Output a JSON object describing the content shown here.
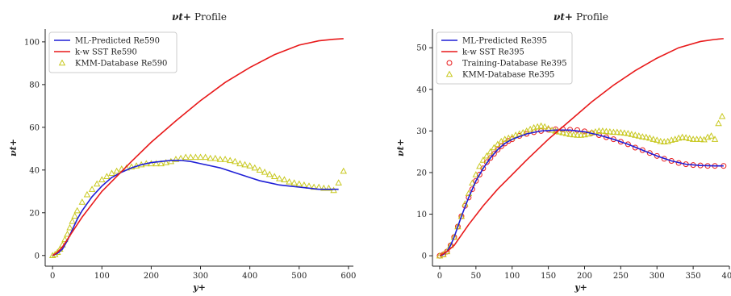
{
  "chart_data": [
    {
      "type": "line",
      "title_sym": "νt+",
      "title": "Profile",
      "xlabel": "y+",
      "ylabel": "νt+",
      "xlim": [
        -15,
        610
      ],
      "ylim": [
        -5,
        106
      ],
      "xticks": [
        0,
        100,
        200,
        300,
        400,
        500,
        600
      ],
      "yticks": [
        0,
        20,
        40,
        60,
        80,
        100
      ],
      "legend_position": "top-left",
      "series": [
        {
          "name": "ML-Predicted Re590",
          "style": "line",
          "color": "#1f1fd6",
          "x": [
            0,
            10,
            20,
            30,
            40,
            50,
            60,
            80,
            100,
            120,
            140,
            160,
            180,
            200,
            220,
            240,
            260,
            280,
            300,
            320,
            340,
            360,
            380,
            400,
            420,
            440,
            460,
            480,
            500,
            520,
            540,
            560,
            580
          ],
          "y": [
            0,
            1,
            3,
            7,
            12,
            17,
            21,
            27.5,
            32.5,
            36.5,
            39,
            41,
            42.5,
            43.5,
            44,
            44.5,
            44.5,
            44,
            43,
            42,
            41,
            39.5,
            38,
            36.5,
            35,
            34,
            33,
            32.5,
            32,
            31.5,
            31,
            31,
            31
          ]
        },
        {
          "name": "k-w SST Re590",
          "style": "line",
          "color": "#e8191a",
          "x": [
            0,
            10,
            20,
            30,
            40,
            60,
            80,
            100,
            130,
            160,
            200,
            250,
            300,
            350,
            400,
            450,
            500,
            540,
            570,
            590
          ],
          "y": [
            0,
            1.5,
            4,
            7.5,
            11,
            18,
            24,
            30,
            37,
            44,
            53,
            63,
            72.5,
            81,
            88,
            94,
            98.5,
            100.5,
            101.2,
            101.5
          ]
        },
        {
          "name": "KMM-Database Re590",
          "style": "marker",
          "marker": "triangle",
          "color": "#c8c81e",
          "x": [
            0,
            5,
            10,
            15,
            20,
            25,
            30,
            35,
            40,
            45,
            50,
            60,
            70,
            80,
            90,
            100,
            110,
            120,
            130,
            140,
            150,
            160,
            170,
            180,
            190,
            200,
            210,
            220,
            230,
            240,
            250,
            260,
            270,
            280,
            290,
            300,
            310,
            320,
            330,
            340,
            350,
            360,
            370,
            380,
            390,
            400,
            410,
            420,
            430,
            440,
            450,
            460,
            470,
            480,
            490,
            500,
            510,
            520,
            530,
            540,
            550,
            560,
            570,
            580,
            590
          ],
          "y": [
            0,
            0.5,
            1.5,
            3,
            5,
            7.5,
            10,
            13,
            16,
            18.5,
            21,
            25,
            28.5,
            31,
            33.5,
            35.5,
            37,
            38.5,
            39.5,
            40.5,
            41,
            41.5,
            42,
            42.5,
            43,
            43,
            43,
            43,
            43.5,
            44,
            45,
            45.5,
            46,
            46,
            46,
            46,
            46,
            45.5,
            45.5,
            45,
            45,
            44.5,
            44,
            43,
            42.5,
            42,
            41,
            40,
            39,
            38,
            37,
            36,
            35.5,
            34.5,
            34,
            33.5,
            33,
            32.5,
            32,
            32,
            31.5,
            31.5,
            30.5,
            34,
            39.5
          ]
        }
      ]
    },
    {
      "type": "line",
      "title_sym": "νt+",
      "title": "Profile",
      "xlabel": "y+",
      "ylabel": "νt+",
      "xlim": [
        -10,
        400
      ],
      "ylim": [
        -2.5,
        54.5
      ],
      "xticks": [
        0,
        50,
        100,
        150,
        200,
        250,
        300,
        350,
        400
      ],
      "yticks": [
        0,
        10,
        20,
        30,
        40,
        50
      ],
      "legend_position": "top-left",
      "series": [
        {
          "name": "ML-Predicted Re395",
          "style": "line",
          "color": "#1f1fd6",
          "x": [
            0,
            5,
            10,
            15,
            20,
            25,
            30,
            40,
            50,
            60,
            70,
            80,
            90,
            100,
            120,
            140,
            160,
            180,
            200,
            220,
            240,
            260,
            280,
            300,
            320,
            340,
            360,
            380,
            392
          ],
          "y": [
            0,
            0.3,
            1,
            2.5,
            4.5,
            7,
            9.5,
            14,
            18,
            21,
            23.5,
            25.5,
            27,
            28,
            29.3,
            30,
            30.2,
            30.2,
            29.8,
            29,
            28,
            26.8,
            25.4,
            24,
            22.8,
            22,
            21.7,
            21.6,
            21.6
          ]
        },
        {
          "name": "k-w SST Re395",
          "style": "line",
          "color": "#e8191a",
          "x": [
            0,
            10,
            20,
            30,
            40,
            60,
            80,
            100,
            120,
            150,
            180,
            210,
            240,
            270,
            300,
            330,
            360,
            380,
            392
          ],
          "y": [
            0,
            1,
            2.5,
            5,
            7.5,
            12,
            16,
            19.5,
            23,
            28,
            32.5,
            37,
            41,
            44.5,
            47.5,
            50,
            51.5,
            52,
            52.2
          ]
        },
        {
          "name": "Training-Database Re395",
          "style": "marker",
          "marker": "circle",
          "color": "#e8191a",
          "x": [
            0,
            5,
            10,
            15,
            20,
            25,
            30,
            35,
            40,
            45,
            50,
            55,
            60,
            65,
            70,
            75,
            80,
            85,
            90,
            95,
            100,
            110,
            120,
            130,
            140,
            150,
            160,
            170,
            180,
            190,
            200,
            210,
            220,
            230,
            240,
            250,
            260,
            270,
            280,
            290,
            300,
            310,
            320,
            330,
            340,
            350,
            360,
            370,
            380,
            392
          ],
          "y": [
            0,
            0.3,
            1,
            2.5,
            4.5,
            7,
            9.5,
            12,
            14,
            16,
            18,
            19.5,
            21,
            22.5,
            23.5,
            24.5,
            25.5,
            26.3,
            27,
            27.6,
            28,
            28.8,
            29.3,
            29.7,
            30,
            30.3,
            30.4,
            30.4,
            30.3,
            30.2,
            29.9,
            29.5,
            29,
            28.5,
            28,
            27.4,
            26.8,
            26,
            25.4,
            24.7,
            24,
            23.3,
            22.8,
            22.3,
            22,
            21.8,
            21.7,
            21.6,
            21.6,
            21.6
          ]
        },
        {
          "name": "KMM-Database Re395",
          "style": "marker",
          "marker": "triangle",
          "color": "#c8c81e",
          "x": [
            0,
            5,
            10,
            15,
            20,
            25,
            30,
            35,
            40,
            45,
            50,
            55,
            60,
            65,
            70,
            75,
            80,
            85,
            90,
            95,
            100,
            105,
            110,
            115,
            120,
            125,
            130,
            135,
            140,
            145,
            150,
            155,
            160,
            165,
            170,
            175,
            180,
            185,
            190,
            195,
            200,
            205,
            210,
            215,
            220,
            225,
            230,
            235,
            240,
            245,
            250,
            255,
            260,
            265,
            270,
            275,
            280,
            285,
            290,
            295,
            300,
            305,
            310,
            315,
            320,
            325,
            330,
            335,
            340,
            345,
            350,
            355,
            360,
            365,
            370,
            375,
            380,
            385,
            390
          ],
          "y": [
            0,
            0.3,
            1,
            2.5,
            4.5,
            7,
            9.5,
            12.5,
            15,
            17.5,
            19.5,
            21.5,
            23,
            24,
            25,
            26,
            26.8,
            27.5,
            28,
            28.3,
            28.5,
            29,
            29.3,
            29.6,
            30,
            30.4,
            30.8,
            31,
            31.2,
            31,
            30.6,
            30.2,
            30,
            29.8,
            29.6,
            29.4,
            29.2,
            29.1,
            29,
            29,
            29.1,
            29.3,
            29.6,
            29.8,
            30,
            30,
            29.9,
            29.8,
            29.7,
            29.7,
            29.6,
            29.5,
            29.4,
            29.2,
            29,
            28.8,
            28.6,
            28.5,
            28.3,
            28,
            27.8,
            27.5,
            27.4,
            27.5,
            27.8,
            28,
            28.3,
            28.5,
            28.4,
            28.2,
            28,
            28,
            28,
            27.9,
            28.5,
            28.8,
            28,
            31.8,
            33.5
          ]
        }
      ]
    }
  ]
}
